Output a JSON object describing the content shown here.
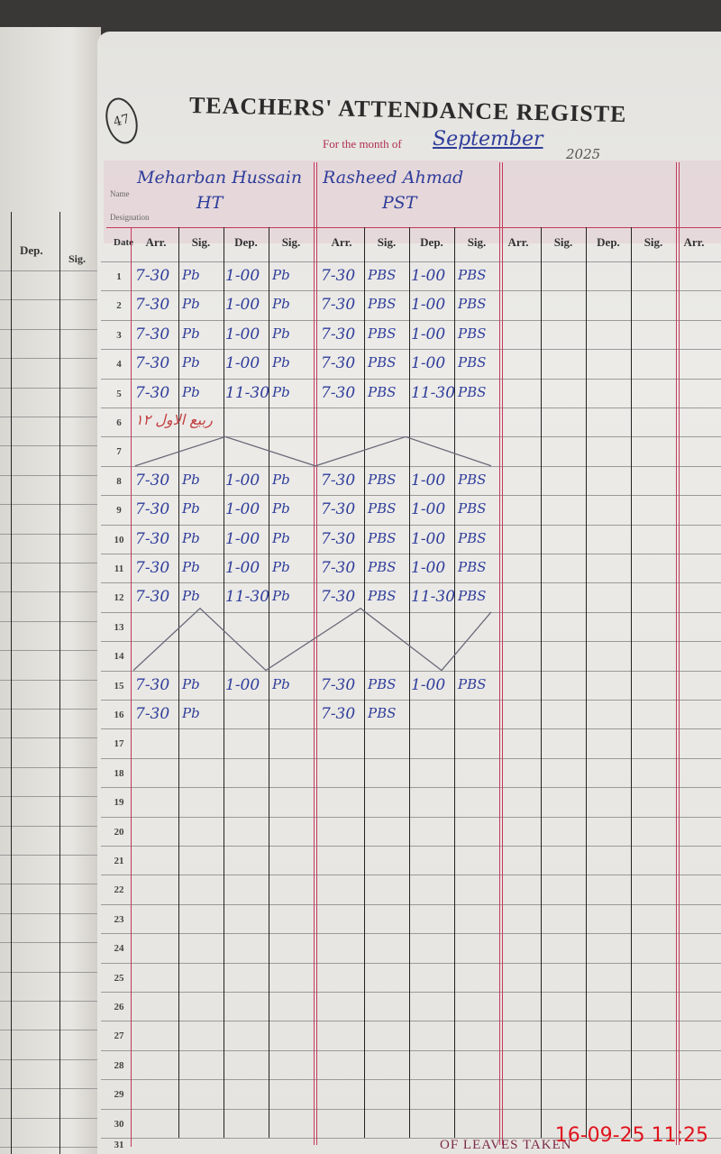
{
  "page_number": "47",
  "title": "TEACHERS' ATTENDANCE REGISTE",
  "month_label": "For the month of",
  "month_value": "September",
  "year_value": "2025",
  "name_label": "Name",
  "designation_label": "Designation",
  "date_header": "Date",
  "column_headers": [
    "Arr.",
    "Sig.",
    "Dep.",
    "Sig."
  ],
  "left_page_headers": [
    "Dep.",
    "Sig."
  ],
  "teachers": [
    {
      "name": "Meharban Hussain",
      "designation": "HT",
      "sig": "Pb",
      "entries": {
        "1": [
          "7-30",
          "1-00"
        ],
        "2": [
          "7-30",
          "1-00"
        ],
        "3": [
          "7-30",
          "1-00"
        ],
        "4": [
          "7-30",
          "1-00"
        ],
        "5": [
          "7-30",
          "11-30"
        ],
        "8": [
          "7-30",
          "1-00"
        ],
        "9": [
          "7-30",
          "1-00"
        ],
        "10": [
          "7-30",
          "1-00"
        ],
        "11": [
          "7-30",
          "1-00"
        ],
        "12": [
          "7-30",
          "11-30"
        ],
        "15": [
          "7-30",
          "1-00"
        ],
        "16": [
          "7-30",
          ""
        ]
      }
    },
    {
      "name": "Rasheed Ahmad",
      "designation": "PST",
      "sig": "PBS",
      "entries": {
        "1": [
          "7-30",
          "1-00"
        ],
        "2": [
          "7-30",
          "1-00"
        ],
        "3": [
          "7-30",
          "1-00"
        ],
        "4": [
          "7-30",
          "1-00"
        ],
        "5": [
          "7-30",
          "11-30"
        ],
        "8": [
          "7-30",
          "1-00"
        ],
        "9": [
          "7-30",
          "1-00"
        ],
        "10": [
          "7-30",
          "1-00"
        ],
        "11": [
          "7-30",
          "1-00"
        ],
        "12": [
          "7-30",
          "11-30"
        ],
        "15": [
          "7-30",
          "1-00"
        ],
        "16": [
          "7-30",
          ""
        ]
      }
    },
    {
      "name": "",
      "designation": "",
      "entries": {}
    },
    {
      "name": "",
      "designation": "",
      "entries": {}
    }
  ],
  "crossed_days": [
    7,
    13,
    14
  ],
  "holiday_day": 6,
  "holiday_note": "۱۲ ربیع الاول",
  "dates": [
    1,
    2,
    3,
    4,
    5,
    6,
    7,
    8,
    9,
    10,
    11,
    12,
    13,
    14,
    15,
    16,
    17,
    18,
    19,
    20,
    21,
    22,
    23,
    24,
    25,
    26,
    27,
    28,
    29,
    30,
    31
  ],
  "footer_text": "OF LEAVES TAKEN",
  "timestamp": "16-09-25  11:25",
  "colors": {
    "ink": "#2f3d9a",
    "rule_red": "#c23a5a",
    "timestamp": "#e0141e"
  }
}
